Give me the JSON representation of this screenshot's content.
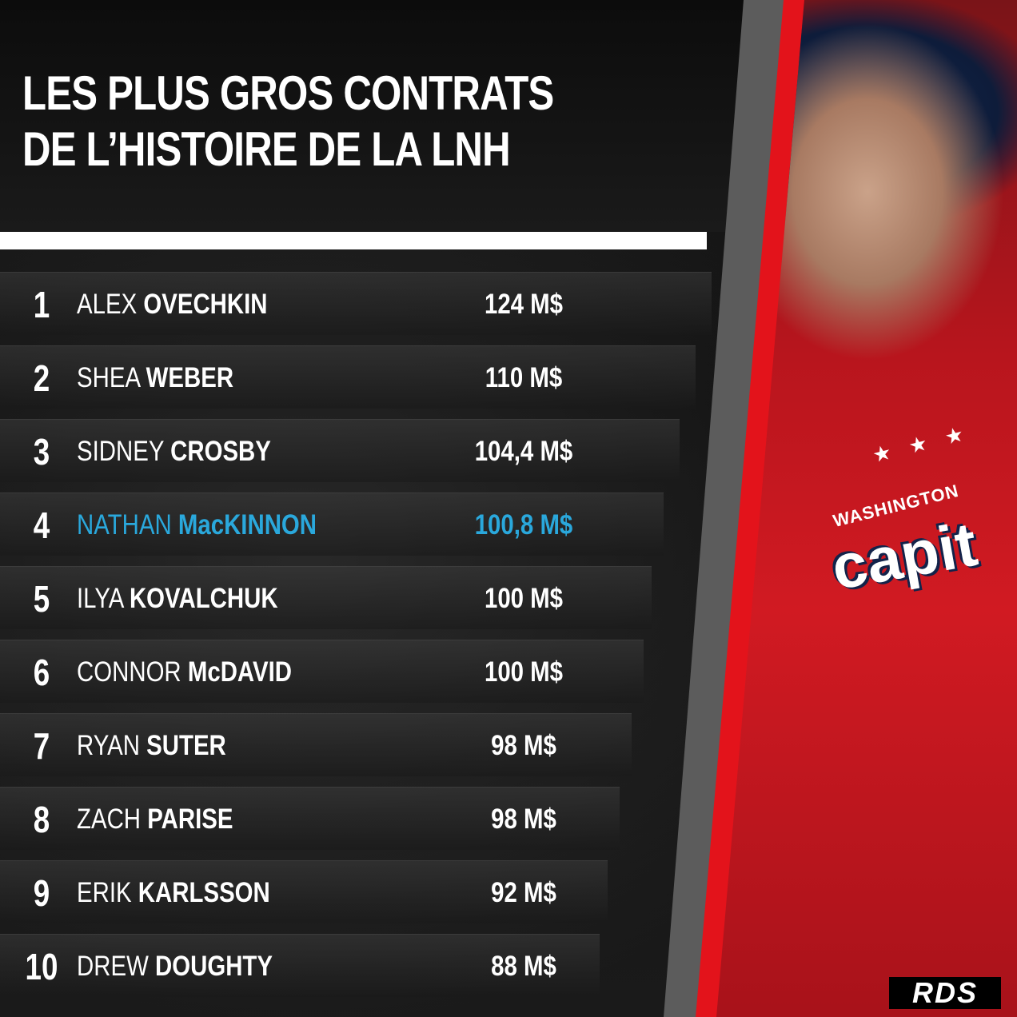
{
  "title": {
    "line1": "LES PLUS GROS CONTRATS",
    "line2": "DE L’HISTOIRE DE LA LNH"
  },
  "highlight_color": "#2aa8dc",
  "accent_color": "#e3131b",
  "rows": [
    {
      "rank": "1",
      "first": "ALEX",
      "last": "OVECHKIN",
      "amount": "124 M$"
    },
    {
      "rank": "2",
      "first": "SHEA",
      "last": "WEBER",
      "amount": "110 M$"
    },
    {
      "rank": "3",
      "first": "SIDNEY",
      "last": "CROSBY",
      "amount": "104,4 M$"
    },
    {
      "rank": "4",
      "first": "NATHAN",
      "last": "MacKINNON",
      "amount": "100,8 M$"
    },
    {
      "rank": "5",
      "first": "ILYA",
      "last": "KOVALCHUK",
      "amount": "100 M$"
    },
    {
      "rank": "6",
      "first": "CONNOR",
      "last": "McDAVID",
      "amount": "100 M$"
    },
    {
      "rank": "7",
      "first": "RYAN",
      "last": "SUTER",
      "amount": "98 M$"
    },
    {
      "rank": "8",
      "first": "ZACH",
      "last": "PARISE",
      "amount": "98 M$"
    },
    {
      "rank": "9",
      "first": "ERIK",
      "last": "KARLSSON",
      "amount": "92 M$"
    },
    {
      "rank": "10",
      "first": "DREW",
      "last": "DOUGHTY",
      "amount": "88 M$"
    }
  ],
  "photo": {
    "jersey_small": "WASHINGTON",
    "jersey_big": "capit"
  },
  "logo": "RDS"
}
